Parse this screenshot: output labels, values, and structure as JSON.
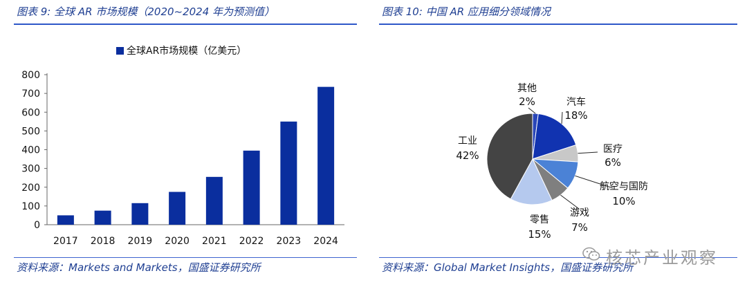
{
  "left_panel": {
    "title": "图表 9:  全球 AR 市场规模（2020~2024 年为预测值）",
    "source": "资料来源：Markets and Markets，国盛证券研究所"
  },
  "right_panel": {
    "title": "图表 10:  中国 AR 应用细分领域情况",
    "source": "资料来源：Global Market Insights，国盛证券研究所"
  },
  "watermark": {
    "text": "核芯产业观察",
    "icon": "wechat-icon"
  },
  "colors": {
    "bar": "#0a2e9e",
    "rule": "#2d56c8",
    "title": "#1f3f92"
  },
  "chart_data": [
    {
      "type": "bar",
      "title": "",
      "legend": [
        "全球AR市场规模（亿美元）"
      ],
      "legend_position": "top",
      "categories": [
        "2017",
        "2018",
        "2019",
        "2020",
        "2021",
        "2022",
        "2023",
        "2024"
      ],
      "values": [
        50,
        75,
        115,
        175,
        255,
        395,
        550,
        735
      ],
      "ylim": [
        0,
        800
      ],
      "yticks": [
        "0",
        "100",
        "200",
        "300",
        "400",
        "500",
        "600",
        "700",
        "800"
      ],
      "grid": false
    },
    {
      "type": "pie",
      "title": "",
      "slices": [
        {
          "label": "其他",
          "percent_label": "2%",
          "value": 2,
          "color": "#2a46b8"
        },
        {
          "label": "汽车",
          "percent_label": "18%",
          "value": 18,
          "color": "#1133b0"
        },
        {
          "label": "医疗",
          "percent_label": "6%",
          "value": 6,
          "color": "#c8c8c8"
        },
        {
          "label": "航空与国防",
          "percent_label": "10%",
          "value": 10,
          "color": "#4b82d6"
        },
        {
          "label": "游戏",
          "percent_label": "7%",
          "value": 7,
          "color": "#7f7f7f"
        },
        {
          "label": "零售",
          "percent_label": "15%",
          "value": 15,
          "color": "#b5c9ee"
        },
        {
          "label": "工业",
          "percent_label": "42%",
          "value": 42,
          "color": "#444444"
        }
      ]
    }
  ]
}
